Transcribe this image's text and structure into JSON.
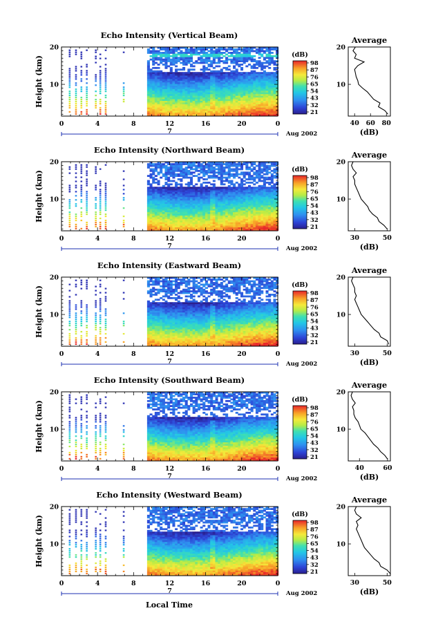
{
  "figure": {
    "xlabel": "Local Time",
    "date_label": "Aug 2002",
    "day_marker": "7",
    "ylabel": "Height (km)",
    "colorbar_unit": "(dB)",
    "average_title": "Average",
    "average_xlabel": "(dB)"
  },
  "chart_data": [
    {
      "type": "heatmap",
      "title": "Echo Intensity (Vertical Beam)",
      "xlabel": "Local Time",
      "ylabel": "Height (km)",
      "x_ticks": [
        "0",
        "4",
        "8",
        "12",
        "16",
        "20",
        "0"
      ],
      "xlim": [
        0,
        24
      ],
      "y_ticks": [
        "10",
        "20"
      ],
      "ylim": [
        1.5,
        20
      ],
      "colorbar": {
        "label": "(dB)",
        "ticks": [
          "21",
          "32",
          "43",
          "54",
          "65",
          "76",
          "87",
          "98"
        ]
      },
      "average_profile": {
        "title": "Average",
        "xlabel": "(dB)",
        "x_ticks": [
          "40",
          "60",
          "80"
        ],
        "xlim": [
          32,
          85
        ],
        "y_ticks": [
          "10",
          "20"
        ],
        "height_km": [
          2,
          3,
          4,
          5,
          6,
          7,
          8,
          9,
          10,
          11,
          12,
          13,
          14,
          15,
          16,
          17,
          18,
          19,
          20
        ],
        "db": [
          82,
          78,
          70,
          72,
          64,
          60,
          56,
          50,
          45,
          44,
          42,
          41,
          40,
          44,
          52,
          40,
          42,
          38,
          41
        ]
      }
    },
    {
      "type": "heatmap",
      "title": "Echo Intensity (Northward Beam)",
      "xlabel": "Local Time",
      "ylabel": "Height (km)",
      "x_ticks": [
        "0",
        "4",
        "8",
        "12",
        "16",
        "20",
        "0"
      ],
      "xlim": [
        0,
        24
      ],
      "y_ticks": [
        "10",
        "20"
      ],
      "ylim": [
        1.5,
        20
      ],
      "colorbar": {
        "label": "(dB)",
        "ticks": [
          "21",
          "32",
          "43",
          "54",
          "65",
          "76",
          "87",
          "98"
        ]
      },
      "average_profile": {
        "title": "Average",
        "xlabel": "(dB)",
        "x_ticks": [
          "30",
          "50"
        ],
        "xlim": [
          26,
          52
        ],
        "y_ticks": [
          "10",
          "20"
        ],
        "height_km": [
          2,
          3,
          4,
          5,
          6,
          7,
          8,
          9,
          10,
          11,
          12,
          13,
          14,
          15,
          16,
          17,
          18,
          19,
          20
        ],
        "db": [
          50,
          48,
          45,
          44,
          41,
          39,
          38,
          36,
          34,
          33,
          32,
          31,
          30,
          30,
          29,
          31,
          29,
          28,
          29
        ]
      }
    },
    {
      "type": "heatmap",
      "title": "Echo Intensity (Eastward Beam)",
      "xlabel": "Local Time",
      "ylabel": "Height (km)",
      "x_ticks": [
        "0",
        "4",
        "8",
        "12",
        "16",
        "20",
        "0"
      ],
      "xlim": [
        0,
        24
      ],
      "y_ticks": [
        "10",
        "20"
      ],
      "ylim": [
        1.5,
        20
      ],
      "colorbar": {
        "label": "(dB)",
        "ticks": [
          "21",
          "32",
          "43",
          "54",
          "65",
          "76",
          "87",
          "98"
        ]
      },
      "average_profile": {
        "title": "Average",
        "xlabel": "(dB)",
        "x_ticks": [
          "30",
          "50"
        ],
        "xlim": [
          26,
          52
        ],
        "y_ticks": [
          "10",
          "20"
        ],
        "height_km": [
          2,
          3,
          4,
          5,
          6,
          7,
          8,
          9,
          10,
          11,
          12,
          13,
          14,
          15,
          16,
          17,
          18,
          19,
          20
        ],
        "db": [
          51,
          50,
          46,
          45,
          42,
          40,
          38,
          36,
          34,
          33,
          32,
          31,
          30,
          31,
          30,
          30,
          29,
          28,
          29
        ]
      }
    },
    {
      "type": "heatmap",
      "title": "Echo Intensity (Southward Beam)",
      "xlabel": "Local Time",
      "ylabel": "Height (km)",
      "x_ticks": [
        "0",
        "4",
        "8",
        "12",
        "16",
        "20",
        "0"
      ],
      "xlim": [
        0,
        24
      ],
      "y_ticks": [
        "10",
        "20"
      ],
      "ylim": [
        1.5,
        20
      ],
      "colorbar": {
        "label": "(dB)",
        "ticks": [
          "21",
          "32",
          "43",
          "54",
          "65",
          "76",
          "87",
          "98"
        ]
      },
      "average_profile": {
        "title": "Average",
        "xlabel": "(dB)",
        "x_ticks": [
          "40",
          "60"
        ],
        "xlim": [
          32,
          62
        ],
        "y_ticks": [
          "10",
          "20"
        ],
        "height_km": [
          2,
          3,
          4,
          5,
          6,
          7,
          8,
          9,
          10,
          11,
          12,
          13,
          14,
          15,
          16,
          17,
          18,
          19,
          20
        ],
        "db": [
          60,
          58,
          55,
          53,
          50,
          48,
          46,
          44,
          41,
          40,
          39,
          37,
          36,
          36,
          35,
          37,
          35,
          34,
          35
        ]
      }
    },
    {
      "type": "heatmap",
      "title": "Echo Intensity (Westward Beam)",
      "xlabel": "Local Time",
      "ylabel": "Height (km)",
      "x_ticks": [
        "0",
        "4",
        "8",
        "12",
        "16",
        "20",
        "0"
      ],
      "xlim": [
        0,
        24
      ],
      "y_ticks": [
        "10",
        "20"
      ],
      "ylim": [
        1.5,
        20
      ],
      "colorbar": {
        "label": "(dB)",
        "ticks": [
          "21",
          "32",
          "43",
          "54",
          "65",
          "76",
          "87",
          "98"
        ]
      },
      "average_profile": {
        "title": "Average",
        "xlabel": "(dB)",
        "x_ticks": [
          "30",
          "50"
        ],
        "xlim": [
          26,
          52
        ],
        "y_ticks": [
          "10",
          "20"
        ],
        "height_km": [
          2,
          3,
          4,
          5,
          6,
          7,
          8,
          9,
          10,
          11,
          12,
          13,
          14,
          15,
          16,
          17,
          18,
          19,
          20
        ],
        "db": [
          52,
          50,
          46,
          45,
          42,
          40,
          38,
          36,
          35,
          34,
          33,
          32,
          31,
          32,
          31,
          34,
          31,
          30,
          31
        ]
      }
    }
  ]
}
